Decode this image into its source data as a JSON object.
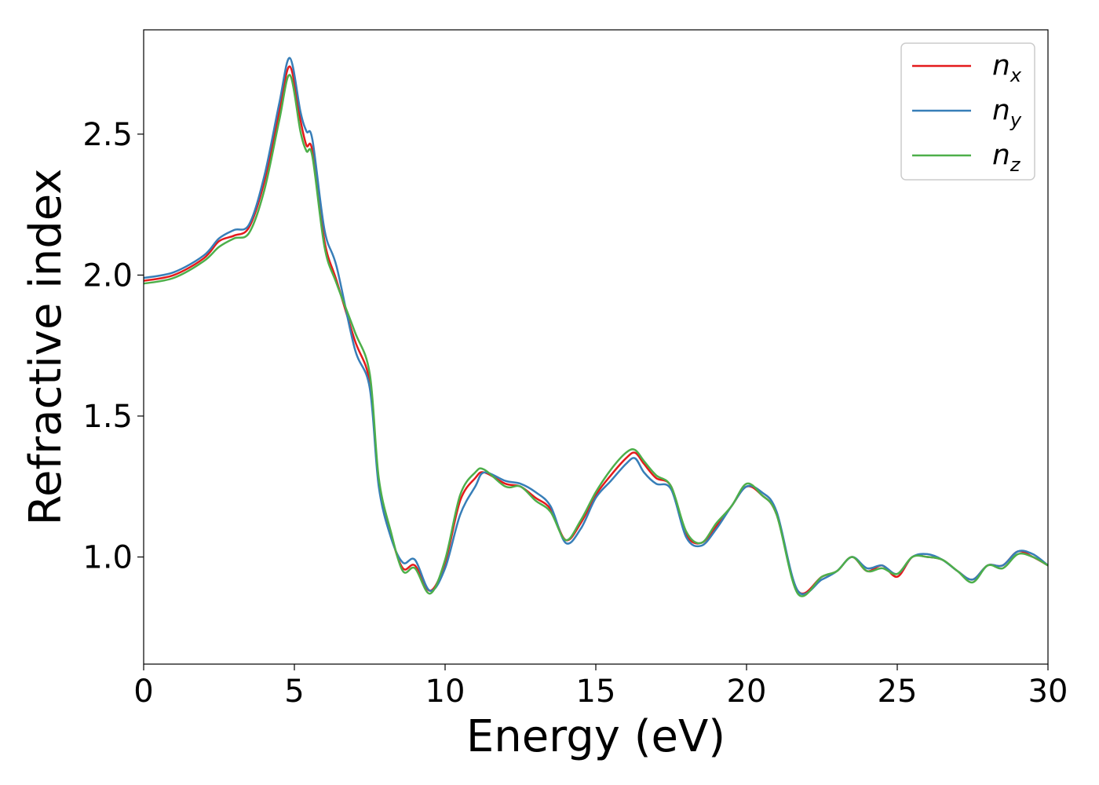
{
  "chart_data": {
    "type": "line",
    "xlabel": "Energy (eV)",
    "ylabel": "Refractive index",
    "xlim": [
      0,
      30
    ],
    "ylim": [
      0.62,
      2.87
    ],
    "xticks": [
      0,
      5,
      10,
      15,
      20,
      25,
      30
    ],
    "xtick_labels": [
      "0",
      "5",
      "10",
      "15",
      "20",
      "25",
      "30"
    ],
    "yticks": [
      1.0,
      1.5,
      2.0,
      2.5
    ],
    "ytick_labels": [
      "1.0",
      "1.5",
      "2.0",
      "2.5"
    ],
    "grid": false,
    "legend_position": "top-right",
    "x": [
      0,
      1,
      2,
      2.5,
      3,
      3.5,
      4,
      4.5,
      4.85,
      5.2,
      5.4,
      5.6,
      6,
      6.4,
      7,
      7.5,
      7.8,
      8.2,
      8.6,
      9,
      9.5,
      10,
      10.5,
      11,
      11.3,
      12,
      12.5,
      13,
      13.5,
      14,
      14.5,
      15,
      15.5,
      16,
      16.3,
      16.6,
      17,
      17.5,
      18,
      18.5,
      19,
      19.5,
      20,
      20.5,
      21,
      21.7,
      22.5,
      23,
      23.5,
      24,
      24.5,
      25,
      25.5,
      26,
      26.5,
      27,
      27.5,
      28,
      28.5,
      29,
      29.5,
      30
    ],
    "series": [
      {
        "name": "n_x",
        "label_main": "n",
        "label_sub": "x",
        "color": "#e41a1c",
        "values": [
          1.98,
          2.0,
          2.06,
          2.12,
          2.14,
          2.17,
          2.33,
          2.58,
          2.74,
          2.55,
          2.46,
          2.44,
          2.12,
          1.98,
          1.77,
          1.62,
          1.27,
          1.08,
          0.96,
          0.97,
          0.88,
          0.98,
          1.2,
          1.28,
          1.3,
          1.26,
          1.25,
          1.21,
          1.17,
          1.06,
          1.12,
          1.22,
          1.29,
          1.35,
          1.37,
          1.33,
          1.28,
          1.25,
          1.08,
          1.05,
          1.11,
          1.18,
          1.25,
          1.22,
          1.15,
          0.88,
          0.93,
          0.95,
          1.0,
          0.95,
          0.97,
          0.93,
          1.0,
          1.0,
          0.99,
          0.95,
          0.92,
          0.97,
          0.97,
          1.02,
          1.0,
          0.97
        ]
      },
      {
        "name": "n_y",
        "label_main": "n",
        "label_sub": "y",
        "color": "#377eb8",
        "values": [
          1.99,
          2.01,
          2.07,
          2.13,
          2.16,
          2.18,
          2.35,
          2.61,
          2.77,
          2.58,
          2.51,
          2.48,
          2.16,
          2.03,
          1.74,
          1.6,
          1.25,
          1.07,
          0.98,
          0.99,
          0.88,
          0.96,
          1.15,
          1.25,
          1.3,
          1.27,
          1.26,
          1.23,
          1.18,
          1.05,
          1.1,
          1.21,
          1.27,
          1.33,
          1.35,
          1.3,
          1.26,
          1.24,
          1.07,
          1.04,
          1.1,
          1.18,
          1.25,
          1.23,
          1.16,
          0.88,
          0.92,
          0.95,
          1.0,
          0.96,
          0.97,
          0.94,
          1.0,
          1.01,
          0.99,
          0.95,
          0.92,
          0.97,
          0.97,
          1.02,
          1.01,
          0.97
        ]
      },
      {
        "name": "n_z",
        "label_main": "n",
        "label_sub": "z",
        "color": "#4daf4a",
        "values": [
          1.97,
          1.99,
          2.05,
          2.1,
          2.13,
          2.15,
          2.3,
          2.55,
          2.71,
          2.51,
          2.44,
          2.42,
          2.1,
          1.97,
          1.8,
          1.65,
          1.28,
          1.09,
          0.95,
          0.96,
          0.87,
          0.99,
          1.22,
          1.3,
          1.31,
          1.25,
          1.25,
          1.2,
          1.16,
          1.06,
          1.13,
          1.23,
          1.31,
          1.37,
          1.38,
          1.34,
          1.29,
          1.25,
          1.09,
          1.05,
          1.12,
          1.18,
          1.26,
          1.22,
          1.15,
          0.87,
          0.93,
          0.95,
          1.0,
          0.95,
          0.96,
          0.94,
          1.0,
          1.0,
          0.99,
          0.95,
          0.91,
          0.97,
          0.96,
          1.01,
          1.0,
          0.97
        ]
      }
    ]
  }
}
